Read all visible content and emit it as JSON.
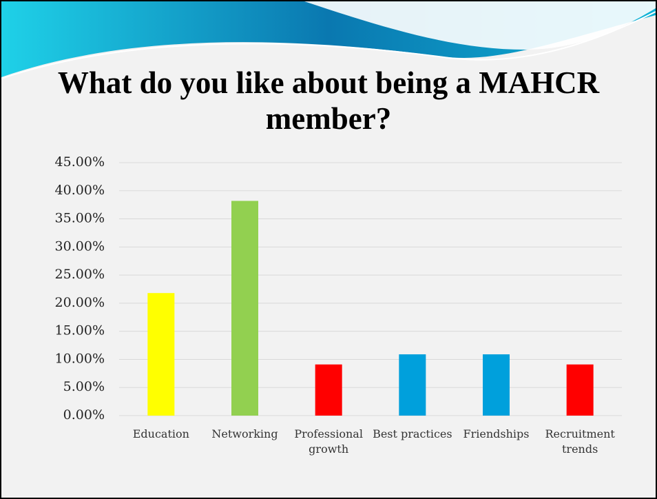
{
  "chart_data": {
    "type": "bar",
    "title": "What do you like about being a MAHCR member?",
    "categories": [
      "Education",
      "Networking",
      "Professional growth",
      "Best practices",
      "Friendships",
      "Recruitment trends"
    ],
    "values": [
      21.8,
      38.2,
      9.1,
      10.9,
      10.9,
      9.1
    ],
    "colors": [
      "#ffff00",
      "#92d050",
      "#ff0000",
      "#00a0dc",
      "#00a0dc",
      "#ff0000"
    ],
    "ylim": [
      0,
      45
    ],
    "yticks": [
      {
        "value": 0,
        "label": "0.00%"
      },
      {
        "value": 5,
        "label": "5.00%"
      },
      {
        "value": 10,
        "label": "10.00%"
      },
      {
        "value": 15,
        "label": "15.00%"
      },
      {
        "value": 20,
        "label": "20.00%"
      },
      {
        "value": 25,
        "label": "25.00%"
      },
      {
        "value": 30,
        "label": "30.00%"
      },
      {
        "value": 35,
        "label": "35.00%"
      },
      {
        "value": 40,
        "label": "40.00%"
      },
      {
        "value": 45,
        "label": "45.00%"
      }
    ],
    "grid": true
  }
}
